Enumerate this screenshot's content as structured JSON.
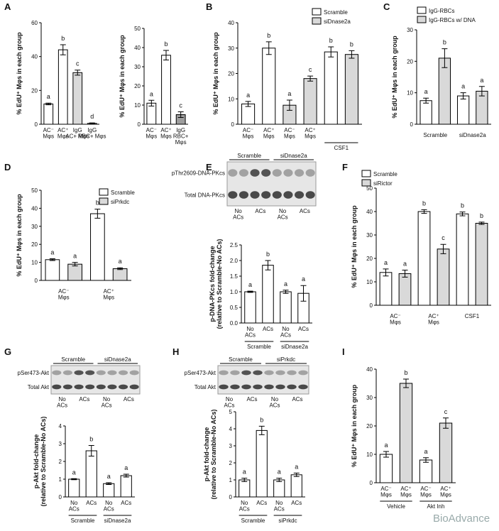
{
  "chart_data": [
    {
      "type": "bar",
      "panel": "A",
      "ylabel": "% EdU⁺ Mφs in each group",
      "categories": [
        "AC⁻\nMφs",
        "AC⁺\nMφs",
        "IgG\nAC+ Mφs",
        "IgG\nRBC+ Mφs"
      ],
      "values": [
        12,
        44,
        30.5,
        0.5
      ],
      "errors": [
        0.5,
        3,
        1.5,
        0.3
      ],
      "letters": [
        "a",
        "b",
        "c",
        "d"
      ],
      "colors": [
        "#ffffff",
        "#ffffff",
        "#d9d9d9",
        "#ffffff"
      ],
      "ylim": [
        0,
        60
      ],
      "yticks": [
        0,
        20,
        40,
        60
      ]
    },
    {
      "type": "bar",
      "ylabel": "% EdU⁺ Mφs in each group",
      "categories": [
        "AC⁻\nMφs",
        "AC⁺\nMφs",
        "IgG\nRBC+\nMφs"
      ],
      "values": [
        11,
        36,
        5
      ],
      "errors": [
        1.5,
        2.5,
        1.5
      ],
      "letters": [
        "a",
        "b",
        "c"
      ],
      "colors": [
        "#ffffff",
        "#ffffff",
        "#9e9e9e"
      ],
      "ylim": [
        0,
        50
      ],
      "yticks": [
        0,
        10,
        20,
        30,
        40,
        50
      ]
    },
    {
      "type": "bar",
      "panel": "B",
      "ylabel": "% EdU⁺ Mφs in each group",
      "categories": [
        "AC⁻\nMφs",
        "AC⁺\nMφs",
        "AC⁻\nMφs",
        "AC⁺\nMφs",
        null,
        null
      ],
      "groups": [
        {
          "label": "CSF1",
          "bars": [
            4,
            5
          ]
        }
      ],
      "values": [
        8,
        30,
        7.5,
        18,
        28.5,
        27.5
      ],
      "errors": [
        1,
        2.5,
        2,
        1,
        2,
        1.5
      ],
      "letters": [
        "a",
        "b",
        "a",
        "c",
        "b",
        "b"
      ],
      "colors": [
        "#ffffff",
        "#ffffff",
        "#d9d9d9",
        "#d9d9d9",
        "#ffffff",
        "#d9d9d9"
      ],
      "legend": [
        {
          "name": "Scramble",
          "color": "#ffffff"
        },
        {
          "name": "siDnase2a",
          "color": "#d9d9d9"
        }
      ],
      "ylim": [
        0,
        40
      ],
      "yticks": [
        0,
        10,
        20,
        30,
        40
      ]
    },
    {
      "type": "bar",
      "panel": "C",
      "ylabel": "% EdU⁺ Mφs in each group",
      "categories": [
        null,
        null,
        null,
        null
      ],
      "groups": [
        {
          "label": "Scramble",
          "bars": [
            0,
            1
          ]
        },
        {
          "label": "siDnase2a",
          "bars": [
            2,
            3
          ]
        }
      ],
      "values": [
        7.5,
        21,
        9,
        10.5
      ],
      "errors": [
        0.8,
        3,
        1,
        1.5
      ],
      "letters": [
        "a",
        "b",
        "a",
        "a"
      ],
      "colors": [
        "#ffffff",
        "#d9d9d9",
        "#ffffff",
        "#d9d9d9"
      ],
      "legend": [
        {
          "name": "IgG-RBCs",
          "color": "#ffffff"
        },
        {
          "name": "IgG-RBCs w/ DNA",
          "color": "#d9d9d9"
        }
      ],
      "ylim": [
        0,
        30
      ],
      "yticks": [
        0,
        10,
        20,
        30
      ]
    },
    {
      "type": "bar",
      "panel": "D",
      "ylabel": "% EdU⁺ Mφs in each group",
      "categories": [
        null,
        null,
        null,
        null
      ],
      "groups": [
        {
          "label": "AC⁻\nMφs",
          "bars": [
            0,
            1
          ]
        },
        {
          "label": "AC⁺\nMφs",
          "bars": [
            2,
            3
          ]
        }
      ],
      "values": [
        11.5,
        9,
        37,
        6.5
      ],
      "errors": [
        0.5,
        1,
        2.5,
        0.5
      ],
      "letters": [
        "a",
        "a",
        "b",
        "a"
      ],
      "colors": [
        "#ffffff",
        "#d9d9d9",
        "#ffffff",
        "#d9d9d9"
      ],
      "legend": [
        {
          "name": "Scramble",
          "color": "#ffffff"
        },
        {
          "name": "siPrkdc",
          "color": "#d9d9d9"
        }
      ],
      "ylim": [
        0,
        50
      ],
      "yticks": [
        0,
        10,
        20,
        30,
        40,
        50
      ]
    },
    {
      "type": "bar",
      "panel": "E",
      "ylabel": "p-DNA-PKcs fold-change\n(relative to Scramble-No ACs)",
      "blot": {
        "rows": [
          "pThr2609-DNA-PKcs",
          "Total DNA-PKcs"
        ]
      },
      "categories": [
        "No\nACs",
        "ACs",
        "No\nACs",
        "ACs"
      ],
      "groups": [
        {
          "label": "Scramble",
          "bars": [
            0,
            1
          ]
        },
        {
          "label": "siDnase2a",
          "bars": [
            2,
            3
          ]
        }
      ],
      "values": [
        1.0,
        1.85,
        1.0,
        0.95
      ],
      "errors": [
        0.02,
        0.15,
        0.05,
        0.25
      ],
      "letters": [
        "a",
        "b",
        "a",
        "a"
      ],
      "colors": [
        "#ffffff",
        "#ffffff",
        "#ffffff",
        "#ffffff"
      ],
      "ylim": [
        0,
        2.5
      ],
      "yticks": [
        {
          "value": 0,
          "label": "0.0"
        },
        0.5,
        {
          "value": 1,
          "label": "1.0"
        },
        1.5,
        {
          "value": 2,
          "label": "2.0"
        },
        2.5
      ]
    },
    {
      "type": "bar",
      "panel": "F",
      "ylabel": "% EdU⁺ Mφs in each group",
      "categories": [
        null,
        null,
        null,
        null,
        null,
        null
      ],
      "groups": [
        {
          "label": "AC⁻\nMφs",
          "bars": [
            0,
            1
          ]
        },
        {
          "label": "AC⁺\nMφs",
          "bars": [
            2,
            3
          ]
        },
        {
          "label": "CSF1",
          "bars": [
            4,
            5
          ]
        }
      ],
      "values": [
        14,
        13.5,
        40,
        24,
        39,
        35
      ],
      "errors": [
        1.5,
        1.5,
        0.8,
        2,
        0.8,
        0.5
      ],
      "letters": [
        "a",
        "a",
        "b",
        "c",
        "b",
        "b"
      ],
      "colors": [
        "#ffffff",
        "#d9d9d9",
        "#ffffff",
        "#d9d9d9",
        "#ffffff",
        "#d9d9d9"
      ],
      "legend": [
        {
          "name": "Scramble",
          "color": "#ffffff"
        },
        {
          "name": "siRictor",
          "color": "#d9d9d9"
        }
      ],
      "ylim": [
        0,
        50
      ],
      "yticks": [
        0,
        10,
        20,
        30,
        40,
        50
      ]
    },
    {
      "type": "bar",
      "panel": "G",
      "ylabel": "p-Akt fold-change\n(relative to Scramble-No ACs)",
      "blot": {
        "rows": [
          "pSer473-Akt",
          "Total Akt"
        ]
      },
      "categories": [
        "No\nACs",
        "ACs",
        "No\nACs",
        "ACs"
      ],
      "groups": [
        {
          "label": "Scramble",
          "bars": [
            0,
            1
          ]
        },
        {
          "label": "siDnase2a",
          "bars": [
            2,
            3
          ]
        }
      ],
      "values": [
        1.0,
        2.6,
        0.75,
        1.2
      ],
      "errors": [
        0.03,
        0.3,
        0.05,
        0.08
      ],
      "letters": [
        "a",
        "b",
        "a",
        "a"
      ],
      "colors": [
        "#ffffff",
        "#ffffff",
        "#ffffff",
        "#ffffff"
      ],
      "ylim": [
        0,
        4
      ],
      "yticks": [
        0,
        1,
        2,
        3,
        4
      ]
    },
    {
      "type": "bar",
      "panel": "H",
      "ylabel": "p-Akt fold-change\n(relative to Scramble-No ACs)",
      "blot": {
        "rows": [
          "pSer473-Akt",
          "Total Akt"
        ]
      },
      "categories": [
        "No\nACs",
        "ACs",
        "No\nACs",
        "ACs"
      ],
      "groups": [
        {
          "label": "Scramble",
          "bars": [
            0,
            1
          ]
        },
        {
          "label": "siPrkdc",
          "bars": [
            2,
            3
          ]
        }
      ],
      "values": [
        1.0,
        3.9,
        1.0,
        1.3
      ],
      "errors": [
        0.1,
        0.25,
        0.1,
        0.1
      ],
      "letters": [
        "a",
        "b",
        "a",
        "a"
      ],
      "colors": [
        "#ffffff",
        "#ffffff",
        "#ffffff",
        "#ffffff"
      ],
      "ylim": [
        0,
        5
      ],
      "yticks": [
        0,
        1,
        2,
        3,
        4,
        5
      ]
    },
    {
      "type": "bar",
      "panel": "I",
      "ylabel": "% EdU⁺ Mφs in each group",
      "categories": [
        "AC⁻\nMφs",
        "AC⁺\nMφs",
        "AC⁻\nMφs",
        "AC⁺\nMφs"
      ],
      "groups": [
        {
          "label": "Vehicle",
          "bars": [
            0,
            1
          ]
        },
        {
          "label": "Akt Inh",
          "bars": [
            2,
            3
          ]
        }
      ],
      "values": [
        10,
        35,
        8,
        21
      ],
      "errors": [
        1,
        1.5,
        0.8,
        1.8
      ],
      "letters": [
        "a",
        "b",
        "a",
        "c"
      ],
      "colors": [
        "#ffffff",
        "#d9d9d9",
        "#ffffff",
        "#d9d9d9"
      ],
      "ylim": [
        0,
        40
      ],
      "yticks": [
        0,
        10,
        20,
        30,
        40
      ]
    }
  ],
  "watermark": "BioAdvance"
}
